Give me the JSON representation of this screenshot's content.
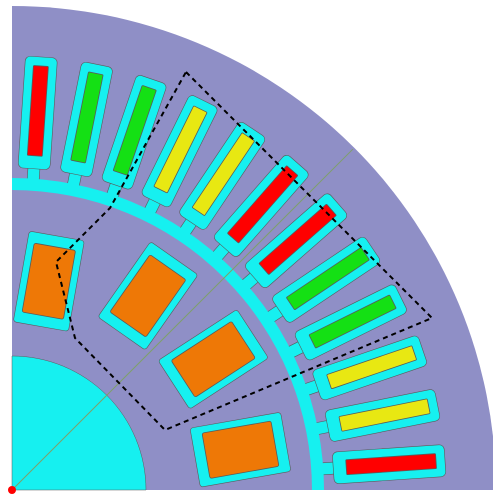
{
  "title": "",
  "colors": {
    "background": "#ffffff",
    "stator_core": "#8f8fc6",
    "rotor_core": "#8f8fc6",
    "air_gap": "#16f0f0",
    "shaft": "#16f0f0",
    "slot_fill": "#16f0f0",
    "phase_a": "#ff0000",
    "phase_b": "#14e014",
    "phase_c": "#e8e812",
    "magnet": "#ee7806",
    "outline": "#5a5a5a",
    "dashed_region": "#000000",
    "axis_line": "#7fa06a",
    "origin_marker": "#ff0000"
  },
  "stator": {
    "slot_count_shown": 12,
    "coil_phase_sequence": [
      "phase_a",
      "phase_b",
      "phase_b",
      "phase_c",
      "phase_c",
      "phase_a",
      "phase_a",
      "phase_b",
      "phase_b",
      "phase_c",
      "phase_c",
      "phase_a"
    ]
  },
  "rotor": {
    "magnet_count_shown": 4
  },
  "annotations": {
    "dashed_region": true,
    "diagonal_axis": true,
    "origin_marker": true
  }
}
